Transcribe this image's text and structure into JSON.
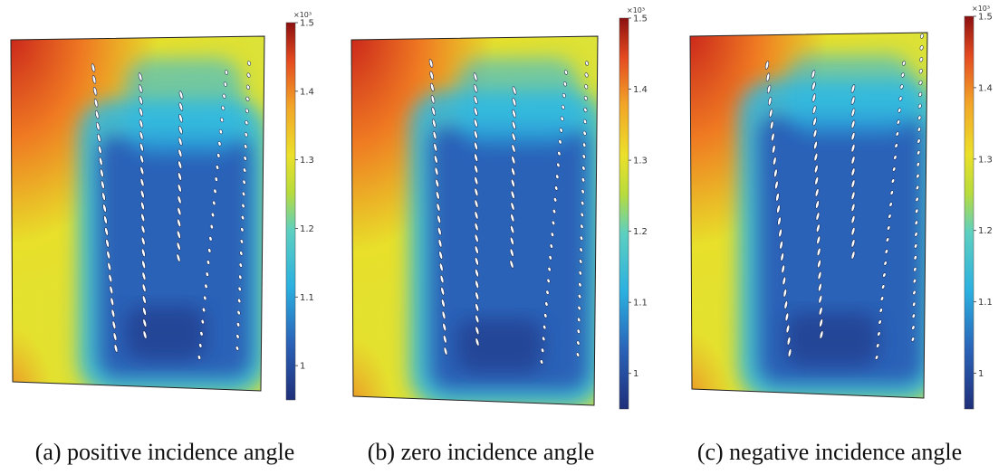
{
  "chart_data": [
    {
      "type": "heatmap",
      "caption": "(a) positive incidence angle",
      "colorbar": {
        "multiplier": "×10³",
        "ticks": [
          "1",
          "1.1",
          "1.2",
          "1.3",
          "1.4",
          "1.5"
        ],
        "tick_values": [
          1.0,
          1.1,
          1.2,
          1.3,
          1.4,
          1.5
        ],
        "range": [
          0.95,
          1.5
        ],
        "colormap": "rainbow (blue-cyan-green-yellow-orange-red)"
      },
      "incidence": "positive"
    },
    {
      "type": "heatmap",
      "caption": "(b) zero incidence angle",
      "colorbar": {
        "multiplier": "×10³",
        "ticks": [
          "1",
          "1.1",
          "1.2",
          "1.3",
          "1.4",
          "1.5"
        ],
        "tick_values": [
          1.0,
          1.1,
          1.2,
          1.3,
          1.4,
          1.5
        ],
        "range": [
          0.95,
          1.5
        ],
        "colormap": "rainbow (blue-cyan-green-yellow-orange-red)"
      },
      "incidence": "zero"
    },
    {
      "type": "heatmap",
      "caption": "(c) negative incidence angle",
      "colorbar": {
        "multiplier": "×10³",
        "ticks": [
          "1",
          "1.1",
          "1.2",
          "1.3",
          "1.4",
          "1.5"
        ],
        "tick_values": [
          1.0,
          1.1,
          1.2,
          1.3,
          1.4,
          1.5
        ],
        "range": [
          0.95,
          1.5
        ],
        "colormap": "rainbow (blue-cyan-green-yellow-orange-red)"
      },
      "incidence": "negative"
    }
  ],
  "colors": {
    "red": "#c8201b",
    "orange": "#ef7a22",
    "yellow": "#e8e02a",
    "cyan": "#2bb8e8",
    "blue": "#2a62b8",
    "navy": "#233a8a"
  }
}
